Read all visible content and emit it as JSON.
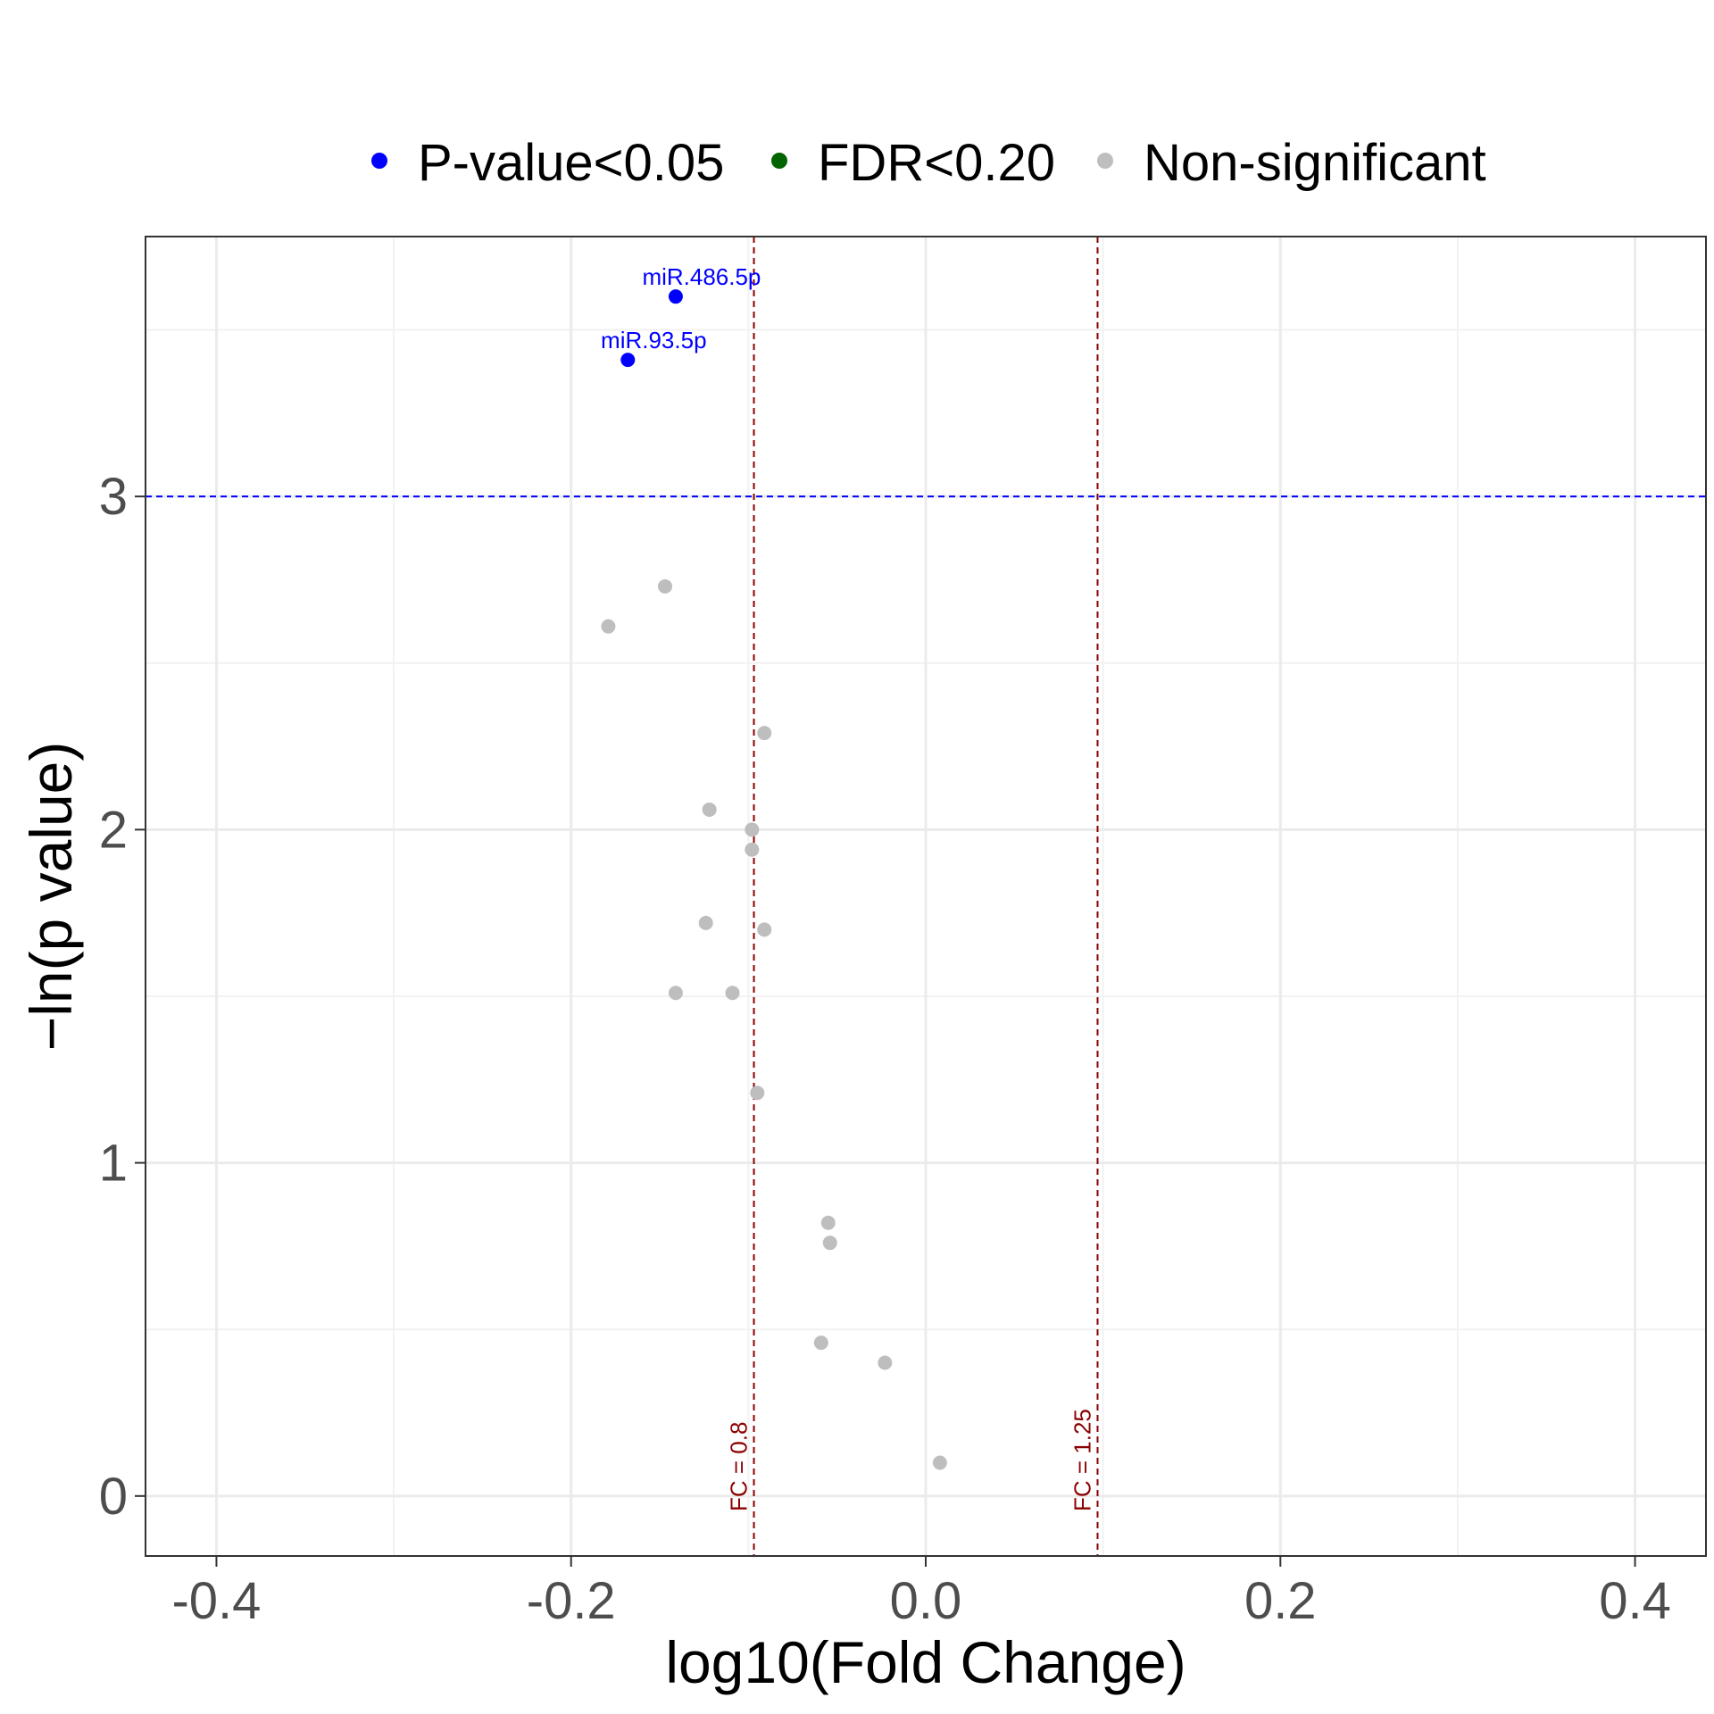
{
  "chart_data": {
    "type": "scatter",
    "xlabel": "log10(Fold Change)",
    "ylabel": "−ln(p value)",
    "xlim": [
      -0.44,
      0.44
    ],
    "ylim": [
      -0.18,
      3.78
    ],
    "x_ticks": [
      "-0.4",
      "-0.2",
      "0.0",
      "0.2",
      "0.4"
    ],
    "x_tick_values": [
      -0.4,
      -0.2,
      0.0,
      0.2,
      0.4
    ],
    "y_ticks": [
      "0",
      "1",
      "2",
      "3"
    ],
    "y_tick_values": [
      0,
      1,
      2,
      3
    ],
    "grid": true,
    "legend_position": "top",
    "legend": [
      {
        "label": "P-value<0.05",
        "color": "#0000ff"
      },
      {
        "label": "FDR<0.20",
        "color": "#006400"
      },
      {
        "label": "Non-significant",
        "color": "#bebebe"
      }
    ],
    "reference_lines": {
      "horizontal": {
        "y": 3,
        "color": "#0000ff"
      },
      "vertical": [
        {
          "x": -0.0969,
          "label": "FC = 0.8",
          "color": "#8b0000"
        },
        {
          "x": 0.0969,
          "label": "FC = 1.25",
          "color": "#8b0000"
        }
      ]
    },
    "series": [
      {
        "name": "P-value<0.05",
        "color": "#0000ff",
        "points": [
          {
            "x": -0.141,
            "y": 3.6,
            "label": "miR.486.5p"
          },
          {
            "x": -0.168,
            "y": 3.41,
            "label": "miR.93.5p"
          }
        ]
      },
      {
        "name": "Non-significant",
        "color": "#bebebe",
        "points": [
          {
            "x": -0.147,
            "y": 2.73
          },
          {
            "x": -0.179,
            "y": 2.61
          },
          {
            "x": -0.091,
            "y": 2.29
          },
          {
            "x": -0.122,
            "y": 2.06
          },
          {
            "x": -0.098,
            "y": 2.0
          },
          {
            "x": -0.098,
            "y": 1.94
          },
          {
            "x": -0.124,
            "y": 1.72
          },
          {
            "x": -0.091,
            "y": 1.7
          },
          {
            "x": -0.141,
            "y": 1.51
          },
          {
            "x": -0.109,
            "y": 1.51
          },
          {
            "x": -0.095,
            "y": 1.21
          },
          {
            "x": -0.055,
            "y": 0.82
          },
          {
            "x": -0.054,
            "y": 0.76
          },
          {
            "x": -0.059,
            "y": 0.46
          },
          {
            "x": -0.023,
            "y": 0.4
          },
          {
            "x": 0.008,
            "y": 0.1
          }
        ]
      }
    ]
  }
}
